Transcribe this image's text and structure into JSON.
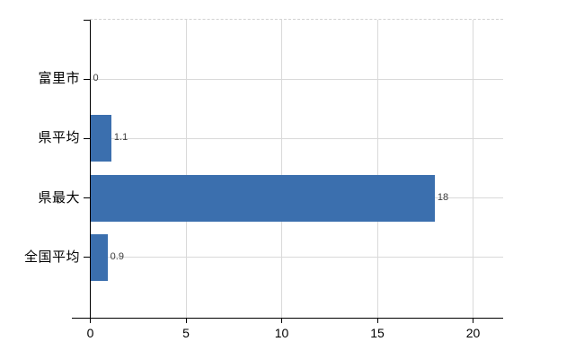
{
  "chart_data": {
    "type": "bar",
    "orientation": "horizontal",
    "title": "",
    "xlabel": "",
    "ylabel": "",
    "categories": [
      "富里市",
      "県平均",
      "県最大",
      "全国平均"
    ],
    "values": [
      0,
      1.1,
      18,
      0.9
    ],
    "value_labels": [
      "0",
      "1.1",
      "18",
      "0.9"
    ],
    "xticks": [
      0,
      5,
      10,
      15,
      20
    ],
    "xtick_labels": [
      "0",
      "5",
      "10",
      "15",
      "20"
    ],
    "xlim": [
      0,
      21.6
    ],
    "grid": true,
    "legend": false,
    "colors": {
      "bar": "#3b6fae",
      "grid": "#d9d9d9",
      "grid_dashed_top": "#d2d2d2",
      "axis": "#000000",
      "category_text": "#000000",
      "value_text": "#3c3c3c",
      "background": "#ffffff"
    }
  }
}
